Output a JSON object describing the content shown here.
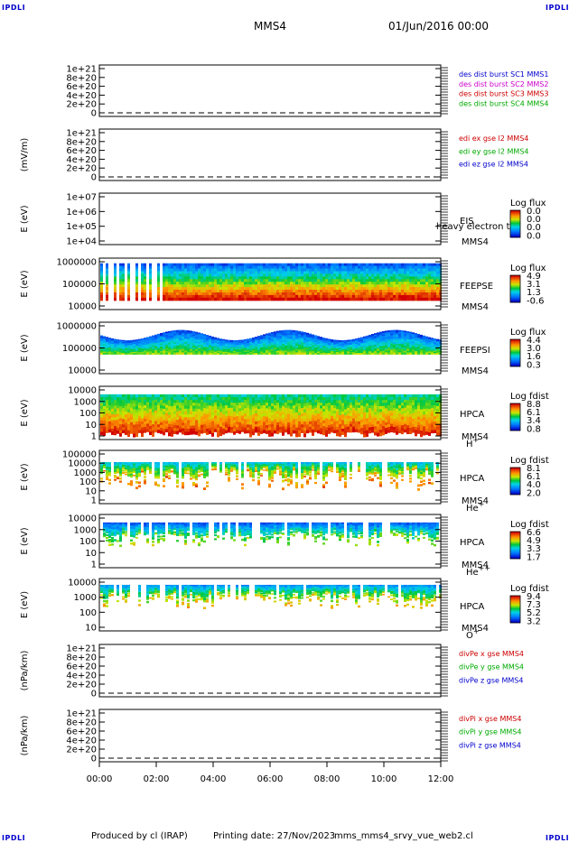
{
  "corners": {
    "tl": "IPDLI",
    "tr": "IPDLI",
    "bl": "IPDLI",
    "br": "IPDLI"
  },
  "header": {
    "spacecraft": "MMS4",
    "date": "01/Jun/2016 00:00"
  },
  "footer": {
    "produced": "Produced by cl (IRAP)",
    "printed": "Printing date: 27/Nov/2023",
    "script": "mms_mms4_srvy_vue_web2.cl"
  },
  "colors": {
    "red": "#cc0000",
    "green": "#00aa00",
    "blue": "#0000cc",
    "magenta": "#cc00cc"
  },
  "chart_data": [
    {
      "type": "line",
      "ylabel": "",
      "yticks": [
        "0",
        "2e+20",
        "4e+20",
        "6e+20",
        "8e+20",
        "1e+21"
      ],
      "legend": [
        {
          "text": "des dist burst SC1 MMS1",
          "color": "blue"
        },
        {
          "text": "des dist burst SC2 MMS2",
          "color": "magenta"
        },
        {
          "text": "des dist burst SC3 MMS3",
          "color": "red"
        },
        {
          "text": "des dist burst SC4 MMS4",
          "color": "green"
        }
      ]
    },
    {
      "type": "line",
      "ylabel": "(mV/m)",
      "yticks": [
        "0",
        "2e+20",
        "4e+20",
        "6e+20",
        "8e+20",
        "1e+21"
      ],
      "legend": [
        {
          "text": "edi ex gse l2 MMS4",
          "color": "red"
        },
        {
          "text": "edi ey gse l2 MMS4",
          "color": "green"
        },
        {
          "text": "edi ez gse l2 MMS4",
          "color": "blue"
        }
      ]
    },
    {
      "type": "heatmap",
      "ylabel": "E (eV)",
      "yticks": [
        "1e+04",
        "1e+05",
        "1e+06",
        "1e+07"
      ],
      "side": [
        "EIS",
        "MMS4"
      ],
      "overlay": "heavy electron to",
      "cbar_title": "Log flux",
      "cbar": [
        "0.0",
        "0.0",
        "0.0",
        "0.0"
      ]
    },
    {
      "type": "heatmap",
      "ylabel": "E (eV)",
      "yticks": [
        "10000",
        "100000",
        "1000000"
      ],
      "side": [
        "FEEPSE",
        "MMS4"
      ],
      "cbar_title": "Log flux",
      "cbar": [
        "4.9",
        "3.1",
        "1.3",
        "-0.6"
      ]
    },
    {
      "type": "heatmap",
      "ylabel": "E (eV)",
      "yticks": [
        "10000",
        "100000",
        "1000000"
      ],
      "side": [
        "FEEPSI",
        "MMS4"
      ],
      "cbar_title": "Log flux",
      "cbar": [
        "4.4",
        "3.0",
        "1.6",
        "0.3"
      ]
    },
    {
      "type": "heatmap",
      "ylabel": "E (eV)",
      "yticks": [
        "1",
        "10",
        "100",
        "1000",
        "10000"
      ],
      "side": [
        "HPCA",
        "MMS4",
        "H"
      ],
      "ion_sup": "+",
      "cbar_title": "Log fdist",
      "cbar": [
        "8.8",
        "6.1",
        "3.4",
        "0.8"
      ]
    },
    {
      "type": "heatmap",
      "ylabel": "E (eV)",
      "yticks": [
        "1",
        "10",
        "100",
        "1000",
        "10000",
        "100000"
      ],
      "side": [
        "HPCA",
        "MMS4",
        "He"
      ],
      "ion_sup": "+",
      "cbar_title": "Log fdist",
      "cbar": [
        "8.1",
        "6.1",
        "4.0",
        "2.0"
      ]
    },
    {
      "type": "heatmap",
      "ylabel": "E (eV)",
      "yticks": [
        "1",
        "10",
        "100",
        "1000",
        "10000"
      ],
      "side": [
        "HPCA",
        "MMS4",
        "He"
      ],
      "ion_sup": "++",
      "cbar_title": "Log fdist",
      "cbar": [
        "6.6",
        "4.9",
        "3.3",
        "1.7"
      ]
    },
    {
      "type": "heatmap",
      "ylabel": "E (eV)",
      "yticks": [
        "10",
        "100",
        "1000",
        "10000"
      ],
      "side": [
        "HPCA",
        "MMS4",
        "O"
      ],
      "ion_sup": "+",
      "cbar_title": "Log fdist",
      "cbar": [
        "9.4",
        "7.3",
        "5.2",
        "3.2"
      ]
    },
    {
      "type": "line",
      "ylabel": "(nPa/km)",
      "yticks": [
        "0",
        "2e+20",
        "4e+20",
        "6e+20",
        "8e+20",
        "1e+21"
      ],
      "legend": [
        {
          "text": "divPe x gse MMS4",
          "color": "red"
        },
        {
          "text": "divPe y gse MMS4",
          "color": "green"
        },
        {
          "text": "divPe z gse MMS4",
          "color": "blue"
        }
      ]
    },
    {
      "type": "line",
      "ylabel": "(nPa/km)",
      "yticks": [
        "0",
        "2e+20",
        "4e+20",
        "6e+20",
        "8e+20",
        "1e+21"
      ],
      "legend": [
        {
          "text": "divPi x gse MMS4",
          "color": "red"
        },
        {
          "text": "divPi y gse MMS4",
          "color": "green"
        },
        {
          "text": "divPi z gse MMS4",
          "color": "blue"
        }
      ]
    }
  ],
  "xaxis": {
    "ticks": [
      "00:00",
      "02:00",
      "04:00",
      "06:00",
      "08:00",
      "10:00",
      "12:00"
    ]
  }
}
